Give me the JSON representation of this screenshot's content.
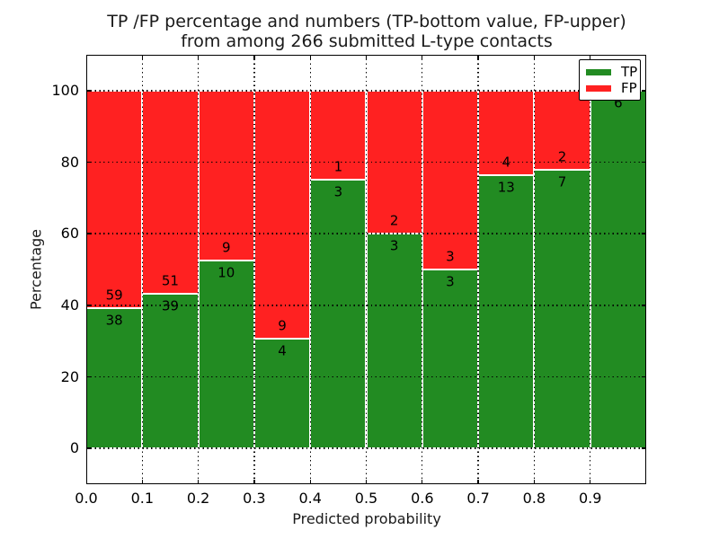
{
  "chart_data": {
    "type": "bar",
    "stacked": true,
    "normalized_to_percent": true,
    "title_line1": "TP /FP percentage and numbers (TP-bottom value, FP-upper)",
    "title_line2": "from among 266 submitted L-type contacts",
    "xlabel": "Predicted probability",
    "ylabel": "Percentage",
    "xlim": [
      0.0,
      1.0
    ],
    "ylim": [
      -10,
      110
    ],
    "x_tick_values": [
      0.0,
      0.1,
      0.2,
      0.3,
      0.4,
      0.5,
      0.6,
      0.7,
      0.8,
      0.9
    ],
    "x_tick_labels": [
      "0.0",
      "0.1",
      "0.2",
      "0.3",
      "0.4",
      "0.5",
      "0.6",
      "0.7",
      "0.8",
      "0.9"
    ],
    "y_tick_values": [
      0,
      20,
      40,
      60,
      80,
      100
    ],
    "y_tick_labels": [
      "0",
      "20",
      "40",
      "60",
      "80",
      "100"
    ],
    "grid": "dotted-black-over-bars",
    "bin_edges": [
      0.0,
      0.1,
      0.2,
      0.3,
      0.4,
      0.5,
      0.6,
      0.7,
      0.8,
      0.9,
      1.0
    ],
    "series": [
      {
        "name": "TP",
        "color": "#228b22",
        "counts": [
          38,
          39,
          10,
          4,
          3,
          3,
          3,
          13,
          7,
          6
        ]
      },
      {
        "name": "FP",
        "color": "#ff2121",
        "counts": [
          59,
          51,
          9,
          9,
          1,
          2,
          3,
          4,
          2,
          0
        ]
      }
    ],
    "bar_value_labels": "counts drawn at TP/FP boundary: FP count above line, TP count below line",
    "total_submitted": 266,
    "legend": {
      "position": "upper right",
      "entries": [
        "TP",
        "FP"
      ]
    }
  },
  "colors": {
    "tp_green": "#228b22",
    "fp_red": "#ff2121",
    "grid": "#000000",
    "background": "#ffffff",
    "bar_edge": "#ffffff"
  }
}
